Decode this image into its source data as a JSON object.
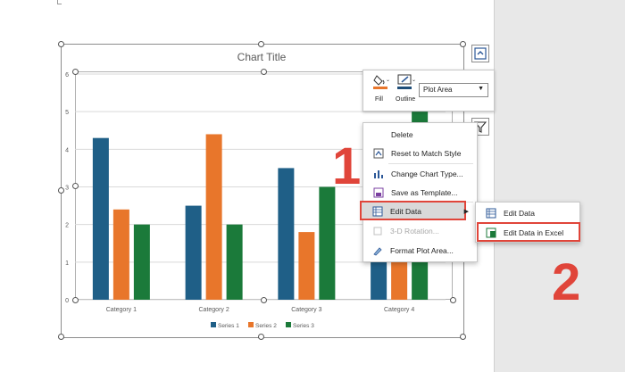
{
  "chart_data": {
    "type": "bar",
    "title": "Chart Title",
    "categories": [
      "Category 1",
      "Category 2",
      "Category 3",
      "Category 4"
    ],
    "series": [
      {
        "name": "Series 1",
        "values": [
          4.3,
          2.5,
          3.5,
          4.5
        ],
        "color": "#1f5f87"
      },
      {
        "name": "Series 2",
        "values": [
          2.4,
          4.4,
          1.8,
          2.8
        ],
        "color": "#e8762b"
      },
      {
        "name": "Series 3",
        "values": [
          2.0,
          2.0,
          3.0,
          5.0
        ],
        "color": "#1b7a3a"
      }
    ],
    "ylim": [
      0,
      6
    ],
    "yticks": [
      "0",
      "1",
      "2",
      "3",
      "4",
      "5",
      "6"
    ],
    "grid": true,
    "legend": "bottom"
  },
  "mini_toolbar": {
    "fill_label": "Fill",
    "outline_label": "Outline",
    "element_selector": "Plot Area"
  },
  "context_menu": {
    "items": [
      {
        "label": "Delete",
        "icon": "delete-icon",
        "enabled": true
      },
      {
        "label": "Reset to Match Style",
        "icon": "reset-style-icon",
        "enabled": true
      },
      {
        "label": "Change Chart Type...",
        "icon": "chart-type-icon",
        "enabled": true
      },
      {
        "label": "Save as Template...",
        "icon": "save-template-icon",
        "enabled": true
      },
      {
        "label": "Edit Data",
        "icon": "edit-data-icon",
        "enabled": true,
        "has_submenu": true
      },
      {
        "label": "3-D Rotation...",
        "icon": "rotation-3d-icon",
        "enabled": false
      },
      {
        "label": "Format Plot Area...",
        "icon": "format-area-icon",
        "enabled": true
      }
    ]
  },
  "submenu": {
    "items": [
      {
        "label": "Edit Data",
        "icon": "edit-data-icon"
      },
      {
        "label": "Edit Data in Excel",
        "icon": "excel-icon"
      }
    ]
  },
  "annotations": {
    "step1": "1",
    "step2": "2",
    "highlight_color": "#e0453a"
  },
  "colors": {
    "fill_swatch": "#e8762b",
    "outline_swatch": "#1f4e79"
  }
}
